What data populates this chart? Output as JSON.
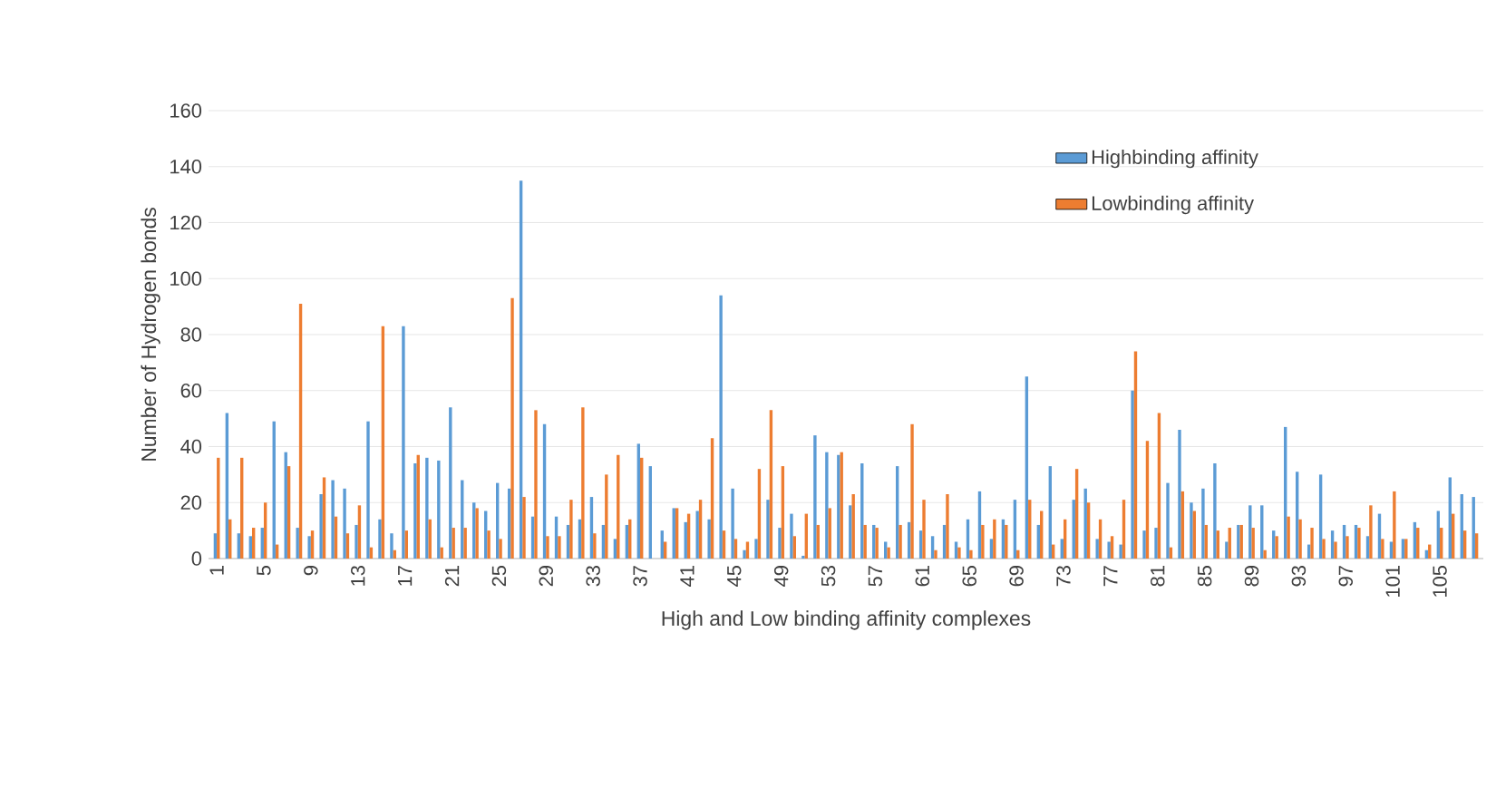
{
  "chart_data": {
    "type": "bar",
    "xlabel": "High and Low binding affinity complexes",
    "ylabel": "Number of Hydrogen bonds",
    "categories": [
      "1",
      null,
      null,
      null,
      "5",
      null,
      null,
      null,
      "9",
      null,
      null,
      null,
      "13",
      null,
      null,
      null,
      "17",
      null,
      null,
      null,
      "21",
      null,
      null,
      null,
      "25",
      null,
      null,
      null,
      "29",
      null,
      null,
      null,
      "33",
      null,
      null,
      null,
      "37",
      null,
      null,
      null,
      "41",
      null,
      null,
      null,
      "45",
      null,
      null,
      null,
      "49",
      null,
      null,
      null,
      "53",
      null,
      null,
      null,
      "57",
      null,
      null,
      null,
      "61",
      null,
      null,
      null,
      "65",
      null,
      null,
      null,
      "69",
      null,
      null,
      null,
      "73",
      null,
      null,
      null,
      "77",
      null,
      null,
      null,
      "81",
      null,
      null,
      null,
      "85",
      null,
      null,
      null,
      "89",
      null,
      null,
      null,
      "93",
      null,
      null,
      null,
      "97",
      null,
      null,
      null,
      "101",
      null,
      null,
      null,
      "105",
      null,
      null,
      null
    ],
    "series": [
      {
        "name": "Highbinding affinity",
        "color": "#5b9bd5",
        "values": [
          9,
          52,
          9,
          8,
          11,
          49,
          38,
          11,
          8,
          23,
          28,
          25,
          12,
          49,
          14,
          9,
          83,
          34,
          36,
          35,
          54,
          28,
          20,
          17,
          27,
          25,
          135,
          15,
          48,
          15,
          12,
          14,
          22,
          12,
          7,
          12,
          41,
          33,
          10,
          18,
          13,
          17,
          14,
          94,
          25,
          3,
          7,
          21,
          11,
          16,
          1,
          44,
          38,
          37,
          19,
          34,
          12,
          6,
          33,
          13,
          10,
          8,
          12,
          6,
          14,
          24,
          7,
          14,
          21,
          65,
          12,
          33,
          7,
          21,
          25,
          7,
          6,
          5,
          60,
          10,
          11,
          27,
          46,
          20,
          25,
          34,
          6,
          12,
          19,
          19,
          10,
          47,
          31,
          5,
          30,
          10,
          12,
          12,
          8,
          16,
          6,
          7,
          13,
          3,
          17,
          29,
          23,
          22
        ]
      },
      {
        "name": "Lowbinding affinity",
        "color": "#ed7d31",
        "values": [
          36,
          14,
          36,
          11,
          20,
          5,
          33,
          91,
          10,
          29,
          15,
          9,
          19,
          4,
          83,
          3,
          10,
          37,
          14,
          4,
          11,
          11,
          18,
          10,
          7,
          93,
          22,
          53,
          8,
          8,
          21,
          54,
          9,
          30,
          37,
          14,
          36,
          0,
          6,
          18,
          16,
          21,
          43,
          10,
          7,
          6,
          32,
          53,
          33,
          8,
          16,
          12,
          18,
          38,
          23,
          12,
          11,
          4,
          12,
          48,
          21,
          3,
          23,
          4,
          3,
          12,
          14,
          12,
          3,
          21,
          17,
          5,
          14,
          32,
          20,
          14,
          8,
          21,
          74,
          42,
          52,
          4,
          24,
          17,
          12,
          10,
          11,
          12,
          11,
          3,
          8,
          15,
          14,
          11,
          7,
          6,
          8,
          11,
          19,
          7,
          24,
          7,
          11,
          5,
          11,
          16,
          10,
          9
        ]
      }
    ],
    "ylim": [
      0,
      160
    ],
    "yticks": [
      0,
      20,
      40,
      60,
      80,
      100,
      120,
      140,
      160
    ],
    "grid": "y",
    "legend": "top right"
  }
}
